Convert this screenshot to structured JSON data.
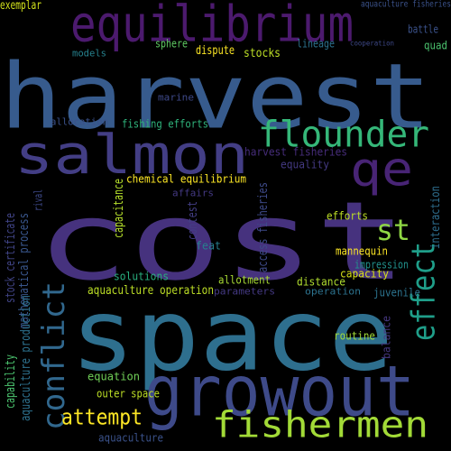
{
  "words": [
    {
      "id": "cost",
      "text": "cost",
      "color": "#46327e"
    },
    {
      "id": "space",
      "text": "space",
      "color": "#2e6f8e"
    },
    {
      "id": "harvest",
      "text": "harvest",
      "color": "#375b8d"
    },
    {
      "id": "equilibrium",
      "text": "equilibrium",
      "color": "#4c1a6e"
    },
    {
      "id": "growout",
      "text": "growout",
      "color": "#3e4a89"
    },
    {
      "id": "salmon",
      "text": "salmon",
      "color": "#433e85"
    },
    {
      "id": "fishermen",
      "text": "fishermen",
      "color": "#a2da37"
    },
    {
      "id": "qe",
      "text": "qe",
      "color": "#482475"
    },
    {
      "id": "flounder",
      "text": "flounder",
      "color": "#35b779"
    },
    {
      "id": "conflict",
      "text": "conflict",
      "color": "#31688e"
    },
    {
      "id": "effect",
      "text": "effect",
      "color": "#1f9e89"
    },
    {
      "id": "st",
      "text": "st",
      "color": "#8fd744"
    },
    {
      "id": "attempt",
      "text": "attempt",
      "color": "#fde725"
    },
    {
      "id": "exemplar",
      "text": "exemplar",
      "color": "#d2e21b"
    },
    {
      "id": "sphere",
      "text": "sphere",
      "color": "#5ec962"
    },
    {
      "id": "dispute",
      "text": "dispute",
      "color": "#fde725"
    },
    {
      "id": "stocks",
      "text": "stocks",
      "color": "#bddf26"
    },
    {
      "id": "models",
      "text": "models",
      "color": "#26828e"
    },
    {
      "id": "lineage",
      "text": "lineage",
      "color": "#2c728e"
    },
    {
      "id": "battle",
      "text": "battle",
      "color": "#3b528b"
    },
    {
      "id": "quad",
      "text": "quad",
      "color": "#4ac16d"
    },
    {
      "id": "aquaculture_fisheries",
      "text": "aquaculture fisheries",
      "color": "#3b528b"
    },
    {
      "id": "cooperation",
      "text": "cooperation",
      "color": "#3e4989"
    },
    {
      "id": "marine",
      "text": "marine",
      "color": "#3e4989"
    },
    {
      "id": "allocation",
      "text": "allocation",
      "color": "#3b528b"
    },
    {
      "id": "fishing_efforts",
      "text": "fishing efforts",
      "color": "#2fb47c"
    },
    {
      "id": "harvest_fisheries",
      "text": "harvest fisheries",
      "color": "#472d7b"
    },
    {
      "id": "equality",
      "text": "equality",
      "color": "#443a83"
    },
    {
      "id": "chemical_equilibrium",
      "text": "chemical equilibrium",
      "color": "#fde725"
    },
    {
      "id": "affairs",
      "text": "affairs",
      "color": "#443983"
    },
    {
      "id": "rival",
      "text": "rival",
      "color": "#3e4989"
    },
    {
      "id": "capacitance",
      "text": "capacitance",
      "color": "#b5de2b"
    },
    {
      "id": "contest",
      "text": "contest",
      "color": "#433e85"
    },
    {
      "id": "access_fisheries",
      "text": "access fisheries",
      "color": "#3e4a89"
    },
    {
      "id": "efforts",
      "text": "efforts",
      "color": "#bddf26"
    },
    {
      "id": "interaction",
      "text": "interaction",
      "color": "#2e6e8e"
    },
    {
      "id": "stock_certificate",
      "text": "stock certificate",
      "color": "#414487"
    },
    {
      "id": "mathematical_process",
      "text": "mathematical process",
      "color": "#39568c"
    },
    {
      "id": "feat",
      "text": "feat",
      "color": "#277f8e"
    },
    {
      "id": "mannequin",
      "text": "mannequin",
      "color": "#fde725"
    },
    {
      "id": "impression",
      "text": "impression",
      "color": "#21918c"
    },
    {
      "id": "capacity",
      "text": "capacity",
      "color": "#d8e219"
    },
    {
      "id": "solutions",
      "text": "solutions",
      "color": "#29af7f"
    },
    {
      "id": "allotment",
      "text": "allotment",
      "color": "#a8db34"
    },
    {
      "id": "distance",
      "text": "distance",
      "color": "#b0dd2f"
    },
    {
      "id": "aquaculture_operation",
      "text": "aquaculture operation",
      "color": "#bddf26"
    },
    {
      "id": "parameters",
      "text": "parameters",
      "color": "#443983"
    },
    {
      "id": "operation",
      "text": "operation",
      "color": "#2c728e"
    },
    {
      "id": "juvenile",
      "text": "juvenile",
      "color": "#2c738e"
    },
    {
      "id": "aquaculture_production",
      "text": "aquaculture production",
      "color": "#2d718e"
    },
    {
      "id": "capability",
      "text": "capability",
      "color": "#4ac16d"
    },
    {
      "id": "routine",
      "text": "routine",
      "color": "#a0da39"
    },
    {
      "id": "balance",
      "text": "balance",
      "color": "#453781"
    },
    {
      "id": "equation",
      "text": "equation",
      "color": "#70cf57"
    },
    {
      "id": "outer_space",
      "text": "outer space",
      "color": "#bddf26"
    },
    {
      "id": "aquaculture",
      "text": "aquaculture",
      "color": "#3b528b"
    }
  ]
}
